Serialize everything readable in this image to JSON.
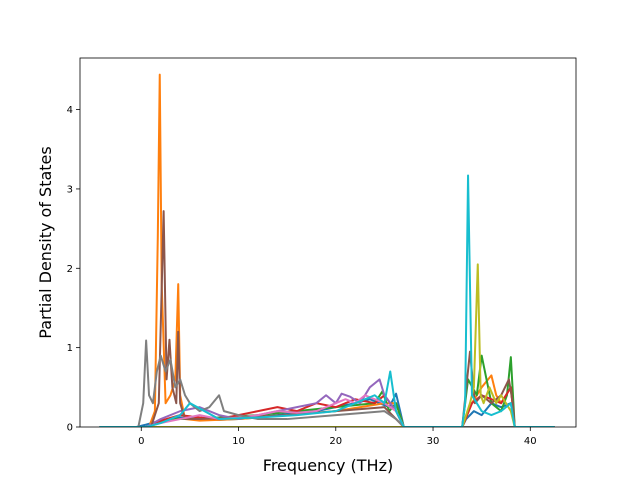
{
  "chart_data": {
    "type": "line",
    "title": "",
    "xlabel": "Frequency (THz)",
    "ylabel": "Partial Density of States",
    "xlim": [
      -6.3,
      44.7
    ],
    "ylim": [
      0,
      4.65
    ],
    "xticks": [
      0,
      10,
      20,
      30,
      40
    ],
    "yticks": [
      0,
      1,
      2,
      3,
      4
    ],
    "grid": false,
    "legend": "none",
    "series": [
      {
        "color": "#1f77b4",
        "x": [
          -4.3,
          -0.5,
          0.5,
          2,
          4,
          6,
          8,
          10,
          12,
          14,
          16,
          18,
          20,
          22,
          23.5,
          24.5,
          25.5,
          26.2,
          27,
          33,
          33.4,
          34.2,
          35,
          36,
          37,
          38,
          38.4,
          42.5
        ],
        "y": [
          0,
          0,
          0.03,
          0.08,
          0.12,
          0.1,
          0.09,
          0.1,
          0.12,
          0.15,
          0.18,
          0.2,
          0.25,
          0.3,
          0.35,
          0.3,
          0.25,
          0.42,
          0,
          0,
          0.1,
          0.2,
          0.15,
          0.3,
          0.25,
          0.3,
          0,
          0
        ]
      },
      {
        "color": "#ff7f0e",
        "x": [
          -4.3,
          0.8,
          1.4,
          1.7,
          1.9,
          2.1,
          2.5,
          3.0,
          3.5,
          3.8,
          4.0,
          4.5,
          6,
          10,
          15,
          20,
          25,
          26.2,
          27,
          33,
          34,
          35,
          36,
          36.5,
          37,
          38,
          38.4,
          42.5
        ],
        "y": [
          0,
          0,
          0.2,
          2.4,
          4.44,
          1.8,
          0.3,
          0.4,
          0.6,
          1.8,
          0.4,
          0.1,
          0.08,
          0.1,
          0.15,
          0.2,
          0.3,
          0.3,
          0,
          0,
          0.3,
          0.5,
          0.65,
          0.4,
          0.3,
          0.5,
          0,
          0
        ]
      },
      {
        "color": "#2ca02c",
        "x": [
          -4.3,
          0.5,
          1.5,
          3,
          5,
          8,
          12,
          16,
          20,
          24,
          24.8,
          25.5,
          26.2,
          27,
          33,
          33.6,
          34.5,
          35,
          36,
          37,
          37.6,
          38,
          38.4,
          42.5
        ],
        "y": [
          0,
          0,
          0.05,
          0.1,
          0.1,
          0.12,
          0.15,
          0.2,
          0.25,
          0.3,
          0.45,
          0.2,
          0.3,
          0,
          0,
          0.6,
          0.4,
          0.9,
          0.3,
          0.2,
          0.4,
          0.88,
          0,
          0
        ]
      },
      {
        "color": "#d62728",
        "x": [
          -4.3,
          0.5,
          2,
          4,
          6,
          8,
          10,
          12,
          14,
          16,
          18,
          20,
          22,
          24,
          25,
          26.2,
          27,
          33,
          34,
          35,
          36,
          37,
          38,
          38.4,
          42.5
        ],
        "y": [
          0,
          0,
          0.08,
          0.15,
          0.12,
          0.1,
          0.15,
          0.2,
          0.25,
          0.2,
          0.3,
          0.25,
          0.35,
          0.3,
          0.4,
          0.2,
          0,
          0,
          0.3,
          0.4,
          0.35,
          0.3,
          0.5,
          0,
          0
        ]
      },
      {
        "color": "#9467bd",
        "x": [
          -4.3,
          0.5,
          2,
          4,
          6,
          8,
          10,
          12,
          14,
          16,
          18,
          19,
          20,
          20.6,
          21.5,
          22.5,
          23.5,
          24.5,
          25,
          26.2,
          27,
          42.5
        ],
        "y": [
          0,
          0,
          0.1,
          0.2,
          0.25,
          0.15,
          0.1,
          0.15,
          0.2,
          0.25,
          0.3,
          0.4,
          0.3,
          0.42,
          0.38,
          0.3,
          0.5,
          0.6,
          0.4,
          0.2,
          0,
          0
        ]
      },
      {
        "color": "#8c564b",
        "x": [
          -4.3,
          1.0,
          1.8,
          2.3,
          2.6,
          2.9,
          3.2,
          3.6,
          3.8,
          4.0,
          4.5,
          6,
          10,
          15,
          20,
          25,
          26.2,
          27,
          33,
          33.8,
          34.3,
          35,
          36,
          37,
          37.8,
          38.2,
          38.4,
          42.5
        ],
        "y": [
          0,
          0,
          0.3,
          2.72,
          0.6,
          1.1,
          0.5,
          0.3,
          1.2,
          0.3,
          0.1,
          0.1,
          0.12,
          0.15,
          0.2,
          0.25,
          0.1,
          0,
          0,
          0.95,
          0.3,
          0.4,
          0.3,
          0.4,
          0.6,
          0.3,
          0,
          0
        ]
      },
      {
        "color": "#e377c2",
        "x": [
          -4.3,
          0.5,
          2,
          4,
          6,
          8,
          10,
          12,
          14,
          16,
          18,
          20,
          21,
          22,
          23,
          24,
          25,
          26.2,
          27,
          42.5
        ],
        "y": [
          0,
          0,
          0.05,
          0.1,
          0.15,
          0.1,
          0.12,
          0.15,
          0.2,
          0.18,
          0.2,
          0.3,
          0.35,
          0.3,
          0.4,
          0.35,
          0.3,
          0.2,
          0,
          0
        ]
      },
      {
        "color": "#7f7f7f",
        "x": [
          -4.3,
          -0.3,
          0.2,
          0.5,
          0.8,
          1.2,
          1.6,
          2.0,
          2.5,
          3.0,
          3.5,
          4.0,
          4.5,
          5,
          6,
          7,
          8,
          8.5,
          10,
          12,
          15,
          20,
          25,
          26.2,
          27,
          42.5
        ],
        "y": [
          0,
          0,
          0.3,
          1.09,
          0.4,
          0.3,
          0.7,
          0.9,
          0.7,
          0.85,
          0.5,
          0.6,
          0.4,
          0.3,
          0.2,
          0.25,
          0.4,
          0.2,
          0.15,
          0.1,
          0.1,
          0.15,
          0.2,
          0.1,
          0,
          0
        ]
      },
      {
        "color": "#bcbd22",
        "x": [
          -4.3,
          33,
          33.8,
          34.2,
          34.6,
          34.9,
          35.2,
          35.8,
          36.5,
          37,
          38,
          38.4,
          42.5
        ],
        "y": [
          0,
          0,
          0.3,
          0.5,
          2.05,
          0.4,
          0.3,
          0.5,
          0.3,
          0.4,
          0.2,
          0,
          0
        ]
      },
      {
        "color": "#17becf",
        "x": [
          -4.3,
          0.5,
          2,
          4,
          5,
          8,
          12,
          16,
          20,
          22,
          24,
          25,
          25.6,
          26.2,
          27,
          33,
          33.3,
          33.6,
          34.0,
          34.5,
          35,
          36,
          37,
          38,
          38.4,
          42.5
        ],
        "y": [
          0,
          0,
          0.05,
          0.15,
          0.3,
          0.1,
          0.12,
          0.15,
          0.2,
          0.3,
          0.4,
          0.3,
          0.7,
          0.2,
          0,
          0,
          0.3,
          3.17,
          0.4,
          0.3,
          0.2,
          0.15,
          0.2,
          0.3,
          0,
          0
        ]
      }
    ]
  }
}
